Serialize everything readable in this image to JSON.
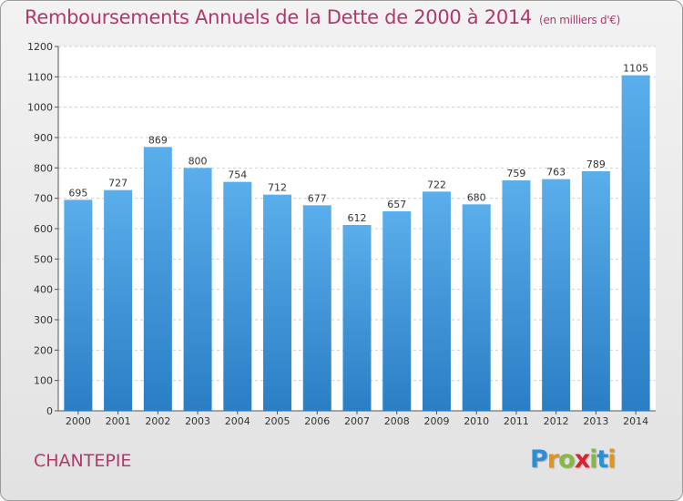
{
  "title": "Remboursements Annuels de la Dette de 2000 à 2014",
  "unit_note": "(en milliers d'€)",
  "town": "CHANTEPIE",
  "logo": {
    "letters": [
      "P",
      "r",
      "o",
      "x",
      "i",
      "t",
      "i"
    ],
    "colors": [
      "#2b8fd6",
      "#e69319",
      "#86b93f",
      "#d8242f",
      "#86b93f",
      "#2b8fd6",
      "#e69319"
    ]
  },
  "colors": {
    "title": "#b0386e",
    "bar_top": "#5aaeeb",
    "bar_bottom": "#2a7ec4"
  },
  "chart_data": {
    "type": "bar",
    "title": "Remboursements Annuels de la Dette de 2000 à 2014",
    "xlabel": "",
    "ylabel": "",
    "categories": [
      "2000",
      "2001",
      "2002",
      "2003",
      "2004",
      "2005",
      "2006",
      "2007",
      "2008",
      "2009",
      "2010",
      "2011",
      "2012",
      "2013",
      "2014"
    ],
    "values": [
      695,
      727,
      869,
      800,
      754,
      712,
      677,
      612,
      657,
      722,
      680,
      759,
      763,
      789,
      1105
    ],
    "ylim": [
      0,
      1200
    ],
    "yticks": [
      0,
      100,
      200,
      300,
      400,
      500,
      600,
      700,
      800,
      900,
      1000,
      1100,
      1200
    ],
    "grid": true
  }
}
